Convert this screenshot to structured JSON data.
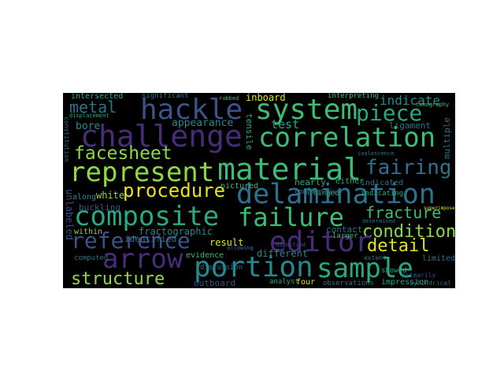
{
  "palette": {
    "background": "#000000",
    "yellow": "#e2e418",
    "lightgreen": "#8fd744",
    "green": "#3dbc74",
    "teal": "#27a982",
    "tealblue": "#23898e",
    "blue": "#2c728e",
    "indigo": "#3b528b",
    "purple": "#472c7a",
    "darkpurple": "#440154"
  },
  "words": {
    "hackle": "hackle",
    "system": "system",
    "piece": "piece",
    "indicate": "indicate",
    "metal": "metal",
    "challenge": "challenge",
    "correlation": "correlation",
    "facesheet": "facesheet",
    "represent": "represent",
    "material": "material",
    "fairing": "fairing",
    "procedure": "procedure",
    "delamination": "delamination",
    "composite": "composite",
    "failure": "failure",
    "fracture": "fracture",
    "condition": "condition",
    "reference": "reference",
    "editor": "editor",
    "detail": "detail",
    "arrow": "arrow",
    "structure": "structure",
    "portion": "portion",
    "sample": "sample",
    "test": "test",
    "appearance": "appearance",
    "bore": "bore",
    "inboard": "inboard",
    "intersected": "intersected",
    "significant": "significant",
    "interpreting": "interpreting",
    "nearly": "nearly",
    "indicated": "indicated",
    "indicating": "indicating",
    "white": "white",
    "along": "along",
    "buckling": "buckling",
    "within": "within",
    "fractographic": "fractographic",
    "identified": "identified",
    "different": "different",
    "result": "result",
    "evidence": "evidence",
    "outboard": "outboard",
    "discussion": "discussion",
    "analyst": "analyst",
    "four": "four",
    "observations": "observations",
    "impression": "impression",
    "contact": "contact",
    "larger": "larger",
    "hinged": "hinged",
    "showed": "showed",
    "limited": "limited",
    "pictured": "pictured",
    "compressive": "compressive",
    "ligament": "ligament",
    "either": "either",
    "extent": "extent",
    "cylindrical": "cylindrical",
    "primarily": "primarily",
    "computed": "computed",
    "unlabeled": "unlabeled",
    "tensile": "tensile",
    "multiple": "multiple",
    "tomography": "tomography",
    "rubbed": "rubbed",
    "constitution": "constitution",
    "displacement": "displacement",
    "superimposed": "superimposed",
    "coalescence": "coalescence",
    "determined": "determined",
    "allowing": "allowing",
    "magnified": "magnified"
  }
}
